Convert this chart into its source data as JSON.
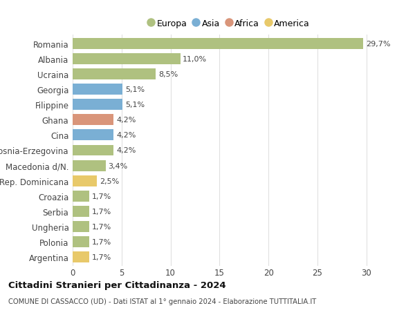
{
  "countries": [
    "Romania",
    "Albania",
    "Ucraina",
    "Georgia",
    "Filippine",
    "Ghana",
    "Cina",
    "Bosnia-Erzegovina",
    "Macedonia d/N.",
    "Rep. Dominicana",
    "Croazia",
    "Serbia",
    "Ungheria",
    "Polonia",
    "Argentina"
  ],
  "values": [
    29.7,
    11.0,
    8.5,
    5.1,
    5.1,
    4.2,
    4.2,
    4.2,
    3.4,
    2.5,
    1.7,
    1.7,
    1.7,
    1.7,
    1.7
  ],
  "labels": [
    "29,7%",
    "11,0%",
    "8,5%",
    "5,1%",
    "5,1%",
    "4,2%",
    "4,2%",
    "4,2%",
    "3,4%",
    "2,5%",
    "1,7%",
    "1,7%",
    "1,7%",
    "1,7%",
    "1,7%"
  ],
  "continents": [
    "Europa",
    "Europa",
    "Europa",
    "Asia",
    "Asia",
    "Africa",
    "Asia",
    "Europa",
    "Europa",
    "America",
    "Europa",
    "Europa",
    "Europa",
    "Europa",
    "America"
  ],
  "continent_colors": {
    "Europa": "#afc180",
    "Asia": "#7aafd4",
    "Africa": "#d9957a",
    "America": "#e8c96a"
  },
  "legend_labels": [
    "Europa",
    "Asia",
    "Africa",
    "America"
  ],
  "legend_colors": [
    "#afc180",
    "#7aafd4",
    "#d9957a",
    "#e8c96a"
  ],
  "title": "Cittadini Stranieri per Cittadinanza - 2024",
  "subtitle": "COMUNE DI CASSACCO (UD) - Dati ISTAT al 1° gennaio 2024 - Elaborazione TUTTITALIA.IT",
  "xlim": [
    0,
    32
  ],
  "xticks": [
    0,
    5,
    10,
    15,
    20,
    25,
    30
  ],
  "background_color": "#ffffff",
  "grid_color": "#e0e0e0",
  "bar_height": 0.72
}
